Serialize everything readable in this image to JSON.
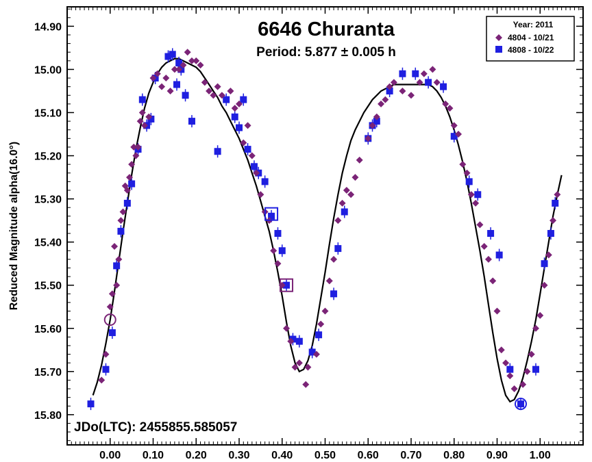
{
  "chart_data": {
    "type": "scatter",
    "title": "6646 Churanta",
    "subtitle": "Period: 5.877 ± 0.005 h",
    "xlabel": "",
    "ylabel": "Reduced Magnitude alpha(16.0°)",
    "xlim": [
      -0.1,
      1.1
    ],
    "ylim": [
      15.87,
      14.855
    ],
    "y_inverted": true,
    "x_ticks": [
      0.0,
      0.1,
      0.2,
      0.3,
      0.4,
      0.5,
      0.6,
      0.7,
      0.8,
      0.9,
      1.0
    ],
    "x_tick_labels": [
      "0.00",
      "0.10",
      "0.20",
      "0.30",
      "0.40",
      "0.50",
      "0.60",
      "0.70",
      "0.80",
      "0.90",
      "1.00"
    ],
    "y_ticks": [
      14.9,
      15.0,
      15.1,
      15.2,
      15.3,
      15.4,
      15.5,
      15.6,
      15.7,
      15.8
    ],
    "y_tick_labels": [
      "14.90",
      "15.00",
      "15.10",
      "15.20",
      "15.30",
      "15.40",
      "15.50",
      "15.60",
      "15.70",
      "15.80"
    ],
    "annotation": "JDo(LTC): 2455855.585057",
    "legend": {
      "title": "Year: 2011",
      "position": "top-right",
      "entries": [
        "4804 - 10/21",
        "4808 - 10/22"
      ]
    },
    "fit_curve": {
      "name": "Fourier fit",
      "color": "#000000",
      "x": [
        -0.04,
        -0.03,
        -0.02,
        -0.01,
        0.0,
        0.01,
        0.02,
        0.03,
        0.04,
        0.05,
        0.06,
        0.07,
        0.08,
        0.09,
        0.1,
        0.11,
        0.12,
        0.13,
        0.14,
        0.15,
        0.16,
        0.17,
        0.18,
        0.19,
        0.2,
        0.21,
        0.22,
        0.23,
        0.24,
        0.25,
        0.26,
        0.27,
        0.28,
        0.29,
        0.3,
        0.31,
        0.32,
        0.33,
        0.34,
        0.35,
        0.36,
        0.37,
        0.38,
        0.39,
        0.4,
        0.41,
        0.42,
        0.43,
        0.44,
        0.45,
        0.46,
        0.47,
        0.48,
        0.49,
        0.5,
        0.51,
        0.52,
        0.53,
        0.54,
        0.55,
        0.56,
        0.57,
        0.58,
        0.59,
        0.6,
        0.61,
        0.62,
        0.63,
        0.64,
        0.65,
        0.66,
        0.67,
        0.68,
        0.69,
        0.7,
        0.71,
        0.72,
        0.73,
        0.74,
        0.75,
        0.76,
        0.77,
        0.78,
        0.79,
        0.8,
        0.81,
        0.82,
        0.83,
        0.84,
        0.85,
        0.86,
        0.87,
        0.88,
        0.89,
        0.9,
        0.91,
        0.92,
        0.93,
        0.94,
        0.95,
        0.96,
        0.97,
        0.98,
        0.99,
        1.0,
        1.01,
        1.02,
        1.03,
        1.04,
        1.05
      ],
      "y": [
        15.755,
        15.725,
        15.685,
        15.635,
        15.58,
        15.515,
        15.445,
        15.375,
        15.31,
        15.245,
        15.185,
        15.135,
        15.09,
        15.055,
        15.03,
        15.01,
        14.995,
        14.985,
        14.98,
        14.975,
        14.975,
        14.98,
        14.985,
        14.99,
        14.995,
        15.005,
        15.02,
        15.035,
        15.05,
        15.065,
        15.085,
        15.1,
        15.12,
        15.14,
        15.16,
        15.185,
        15.21,
        15.24,
        15.27,
        15.305,
        15.34,
        15.375,
        15.42,
        15.47,
        15.525,
        15.585,
        15.64,
        15.68,
        15.7,
        15.695,
        15.675,
        15.64,
        15.59,
        15.53,
        15.47,
        15.405,
        15.345,
        15.29,
        15.24,
        15.2,
        15.165,
        15.14,
        15.12,
        15.1,
        15.085,
        15.07,
        15.06,
        15.05,
        15.045,
        15.04,
        15.035,
        15.035,
        15.035,
        15.035,
        15.035,
        15.035,
        15.035,
        15.035,
        15.035,
        15.04,
        15.05,
        15.065,
        15.085,
        15.11,
        15.14,
        15.175,
        15.215,
        15.26,
        15.31,
        15.365,
        15.42,
        15.48,
        15.545,
        15.61,
        15.67,
        15.72,
        15.755,
        15.77,
        15.765,
        15.745,
        15.715,
        15.675,
        15.63,
        15.58,
        15.52,
        15.46,
        15.4,
        15.34,
        15.29,
        15.245
      ]
    },
    "series": [
      {
        "name": "4804 - 10/21",
        "marker": "diamond",
        "color": "#7b2477",
        "x": [
          -0.02,
          -0.01,
          0.0,
          0.005,
          0.01,
          0.015,
          0.02,
          0.025,
          0.03,
          0.035,
          0.04,
          0.045,
          0.05,
          0.055,
          0.06,
          0.065,
          0.07,
          0.075,
          0.08,
          0.09,
          0.1,
          0.11,
          0.12,
          0.13,
          0.14,
          0.15,
          0.16,
          0.17,
          0.18,
          0.19,
          0.2,
          0.21,
          0.22,
          0.23,
          0.24,
          0.25,
          0.26,
          0.28,
          0.29,
          0.3,
          0.31,
          0.32,
          0.33,
          0.34,
          0.35,
          0.36,
          0.37,
          0.38,
          0.39,
          0.4,
          0.41,
          0.42,
          0.43,
          0.44,
          0.455,
          0.46,
          0.48,
          0.49,
          0.5,
          0.51,
          0.52,
          0.53,
          0.54,
          0.55,
          0.56,
          0.57,
          0.58,
          0.6,
          0.61,
          0.62,
          0.63,
          0.64,
          0.65,
          0.66,
          0.68,
          0.7,
          0.72,
          0.73,
          0.75,
          0.76,
          0.78,
          0.79,
          0.8,
          0.81,
          0.82,
          0.83,
          0.84,
          0.85,
          0.86,
          0.87,
          0.88,
          0.89,
          0.9,
          0.91,
          0.92,
          0.93,
          0.94,
          0.96,
          0.97,
          0.98,
          0.99,
          1.0,
          1.01,
          1.02,
          1.03,
          1.04
        ],
        "y": [
          15.72,
          15.66,
          15.55,
          15.52,
          15.41,
          15.5,
          15.44,
          15.35,
          15.33,
          15.27,
          15.28,
          15.25,
          15.22,
          15.18,
          15.2,
          15.18,
          15.12,
          15.1,
          15.13,
          15.11,
          15.02,
          15.01,
          15.04,
          15.02,
          15.05,
          15.0,
          15.0,
          14.99,
          14.96,
          14.98,
          14.98,
          14.99,
          15.03,
          15.05,
          15.06,
          15.04,
          15.06,
          15.05,
          15.09,
          15.08,
          15.17,
          15.13,
          15.2,
          15.24,
          15.29,
          15.33,
          15.35,
          15.42,
          15.45,
          15.5,
          15.6,
          15.63,
          15.69,
          15.68,
          15.73,
          15.69,
          15.66,
          15.59,
          15.56,
          15.49,
          15.44,
          15.35,
          15.31,
          15.28,
          15.29,
          15.25,
          15.21,
          15.16,
          15.13,
          15.11,
          15.08,
          15.07,
          15.04,
          15.03,
          15.05,
          15.06,
          15.03,
          15.01,
          15.0,
          15.03,
          15.08,
          15.09,
          15.13,
          15.15,
          15.22,
          15.24,
          15.29,
          15.31,
          15.36,
          15.41,
          15.44,
          15.49,
          15.56,
          15.65,
          15.68,
          15.71,
          15.74,
          15.73,
          15.7,
          15.66,
          15.6,
          15.57,
          15.5,
          15.43,
          15.35,
          15.29
        ]
      },
      {
        "name": "4808 - 10/22",
        "marker": "square",
        "color": "#1f1fe0",
        "x": [
          -0.045,
          -0.01,
          0.005,
          0.015,
          0.025,
          0.04,
          0.05,
          0.065,
          0.075,
          0.085,
          0.095,
          0.105,
          0.135,
          0.145,
          0.155,
          0.16,
          0.165,
          0.175,
          0.19,
          0.25,
          0.27,
          0.29,
          0.3,
          0.31,
          0.32,
          0.335,
          0.345,
          0.36,
          0.375,
          0.39,
          0.4,
          0.41,
          0.425,
          0.44,
          0.47,
          0.485,
          0.52,
          0.53,
          0.545,
          0.6,
          0.61,
          0.62,
          0.65,
          0.68,
          0.71,
          0.74,
          0.775,
          0.8,
          0.835,
          0.855,
          0.885,
          0.905,
          0.93,
          0.955,
          0.99,
          1.01,
          1.025,
          1.035
        ],
        "y": [
          15.775,
          15.695,
          15.61,
          15.455,
          15.375,
          15.31,
          15.265,
          15.185,
          15.07,
          15.13,
          15.115,
          15.02,
          14.97,
          14.965,
          15.035,
          14.985,
          15.0,
          15.06,
          15.12,
          15.19,
          15.07,
          15.11,
          15.135,
          15.07,
          15.185,
          15.225,
          15.24,
          15.26,
          15.34,
          15.38,
          15.42,
          15.5,
          15.625,
          15.63,
          15.655,
          15.615,
          15.52,
          15.415,
          15.33,
          15.16,
          15.13,
          15.12,
          15.05,
          15.01,
          15.01,
          15.03,
          15.04,
          15.155,
          15.26,
          15.29,
          15.38,
          15.43,
          15.695,
          15.775,
          15.695,
          15.45,
          15.38,
          15.31
        ]
      }
    ]
  }
}
